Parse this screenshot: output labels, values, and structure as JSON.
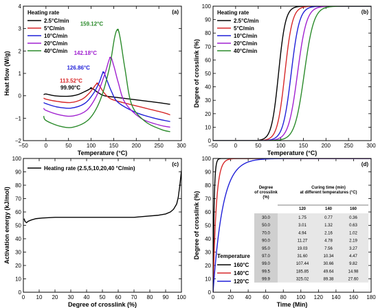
{
  "chart_data": [
    {
      "panel": "(a)",
      "type": "line",
      "xlabel": "Temperature (°C)",
      "ylabel": "Heat flow (W/g)",
      "xlim": [
        -50,
        300
      ],
      "ylim": [
        -2,
        4
      ],
      "xticks": [
        "−50",
        "0",
        "50",
        "100",
        "150",
        "200",
        "250",
        "300"
      ],
      "yticks": [
        "−2",
        "−1",
        "0",
        "1",
        "2",
        "3",
        "4"
      ],
      "legend_title": "Heating rate",
      "legend_position": "top-left",
      "series": [
        {
          "name": "2.5°C/min",
          "color": "#000000",
          "x": [
            -5,
            0,
            20,
            50,
            70,
            85,
            95,
            99.9,
            105,
            115,
            130,
            160,
            200,
            240,
            275
          ],
          "y": [
            0.05,
            0.08,
            0.0,
            -0.02,
            0.05,
            0.18,
            0.28,
            0.34,
            0.3,
            0.15,
            0.0,
            -0.08,
            -0.18,
            -0.28,
            -0.38
          ]
        },
        {
          "name": "5°C/min",
          "color": "#d62728",
          "x": [
            -5,
            0,
            25,
            55,
            80,
            95,
            105,
            113.5,
            120,
            130,
            145,
            180,
            220,
            260,
            275
          ],
          "y": [
            -0.1,
            -0.15,
            -0.25,
            -0.3,
            -0.15,
            0.1,
            0.35,
            0.55,
            0.4,
            0.1,
            -0.15,
            -0.35,
            -0.55,
            -0.75,
            -0.85
          ]
        },
        {
          "name": "10°C/min",
          "color": "#1f1fd8",
          "x": [
            -5,
            0,
            25,
            55,
            85,
            105,
            118,
            126.9,
            133,
            145,
            160,
            200,
            240,
            275
          ],
          "y": [
            -0.3,
            -0.35,
            -0.5,
            -0.55,
            -0.35,
            0.1,
            0.6,
            1.05,
            0.8,
            0.2,
            -0.3,
            -0.75,
            -1.0,
            -1.15
          ]
        },
        {
          "name": "20°C/min",
          "color": "#a020d0",
          "x": [
            -5,
            0,
            30,
            60,
            90,
            112,
            130,
            142.2,
            150,
            160,
            175,
            210,
            250,
            275
          ],
          "y": [
            -0.55,
            -0.65,
            -0.85,
            -0.9,
            -0.65,
            0.0,
            0.95,
            1.7,
            1.35,
            0.6,
            -0.3,
            -1.0,
            -1.3,
            -1.4
          ]
        },
        {
          "name": "40°C/min",
          "color": "#2a8a2a",
          "x": [
            -5,
            0,
            30,
            60,
            95,
            120,
            140,
            152,
            159.1,
            165,
            175,
            190,
            220,
            255,
            275
          ],
          "y": [
            -0.9,
            -1.1,
            -1.35,
            -1.4,
            -1.05,
            -0.2,
            1.2,
            2.6,
            2.95,
            2.5,
            1.2,
            -0.4,
            -1.15,
            -1.5,
            -1.6
          ]
        }
      ],
      "annotations": [
        {
          "text": "159.12°C",
          "color": "#2a8a2a",
          "x": 159.12,
          "y": 2.95
        },
        {
          "text": "142.18°C",
          "color": "#a020d0",
          "x": 142.18,
          "y": 1.7
        },
        {
          "text": "126.86°C",
          "color": "#1f1fd8",
          "x": 126.86,
          "y": 1.05
        },
        {
          "text": "113.52°C",
          "color": "#d62728",
          "x": 113.52,
          "y": 0.55
        },
        {
          "text": "99.90°C",
          "color": "#000000",
          "x": 99.9,
          "y": 0.34
        }
      ]
    },
    {
      "panel": "(b)",
      "type": "line",
      "xlabel": "Temperature (°C)",
      "ylabel": "Degree of crosslink (%)",
      "xlim": [
        -50,
        300
      ],
      "ylim": [
        0,
        100
      ],
      "xticks": [
        "−50",
        "0",
        "50",
        "100",
        "150",
        "200",
        "250",
        "300"
      ],
      "yticks": [
        "0",
        "10",
        "20",
        "30",
        "40",
        "50",
        "60",
        "70",
        "80",
        "90",
        "100"
      ],
      "legend_title": "Heating rate",
      "legend_position": "top-left",
      "series": [
        {
          "name": "2.5°C/min",
          "color": "#000000",
          "mid": 95,
          "k": 0.13
        },
        {
          "name": "5°C/min",
          "color": "#d62728",
          "mid": 109,
          "k": 0.12
        },
        {
          "name": "10°C/min",
          "color": "#1f1fd8",
          "mid": 123,
          "k": 0.11
        },
        {
          "name": "20°C/min",
          "color": "#a020d0",
          "mid": 137,
          "k": 0.1
        },
        {
          "name": "40°C/min",
          "color": "#2a8a2a",
          "mid": 152,
          "k": 0.095
        }
      ]
    },
    {
      "panel": "(c)",
      "type": "line",
      "xlabel": "Degree of crosslink (%)",
      "ylabel": "Activation energy (kJ/mol)",
      "xlim": [
        0,
        100
      ],
      "ylim": [
        0,
        100
      ],
      "xticks": [
        "0",
        "10",
        "20",
        "30",
        "40",
        "50",
        "60",
        "70",
        "80",
        "90",
        "100"
      ],
      "yticks": [
        "0",
        "10",
        "20",
        "30",
        "40",
        "50",
        "60",
        "70",
        "80",
        "90",
        "100"
      ],
      "legend_position": "top-left",
      "series": [
        {
          "name": "Heating rate (2.5,5,10,20,40 °C/min)",
          "color": "#000000",
          "x": [
            0.5,
            1,
            2,
            3,
            5,
            8,
            12,
            20,
            30,
            40,
            50,
            60,
            70,
            80,
            85,
            90,
            93,
            95,
            97,
            98,
            99,
            100
          ],
          "y": [
            55,
            53,
            52,
            53,
            54,
            55,
            55.5,
            56,
            56,
            56,
            56,
            56,
            56,
            57,
            57.5,
            58.5,
            60,
            62,
            66,
            71,
            80,
            91
          ]
        }
      ]
    },
    {
      "panel": "(d)",
      "type": "line",
      "xlabel": "Time (Min)",
      "ylabel": "Degree of crosslink (%)",
      "xlim": [
        0,
        180
      ],
      "ylim": [
        0,
        100
      ],
      "xticks": [
        "0",
        "20",
        "40",
        "60",
        "80",
        "100",
        "120",
        "140",
        "160",
        "180"
      ],
      "yticks": [
        "0",
        "10",
        "20",
        "30",
        "40",
        "50",
        "60",
        "70",
        "80",
        "90",
        "100"
      ],
      "legend_title": "Temperature",
      "legend_position": "bottom-left",
      "series": [
        {
          "name": "160°C",
          "color": "#000000",
          "tau": 1.2
        },
        {
          "name": "140°C",
          "color": "#d62728",
          "tau": 3.6
        },
        {
          "name": "120°C",
          "color": "#1f1fd8",
          "tau": 11.0
        }
      ],
      "table": {
        "col0_header": [
          "Degree",
          "of crosslink",
          "(%)"
        ],
        "group_header": [
          "Curing time (min)",
          "at different temperatures (°C)"
        ],
        "temps": [
          "120",
          "140",
          "160"
        ],
        "rows": [
          [
            "30.0",
            "1.75",
            "0.77",
            "0.36"
          ],
          [
            "50.0",
            "3.01",
            "1.32",
            "0.63"
          ],
          [
            "70.0",
            "4.94",
            "2.16",
            "1.02"
          ],
          [
            "90.0",
            "11.27",
            "4.78",
            "2.19"
          ],
          [
            "95.0",
            "19.03",
            "7.56",
            "3.27"
          ],
          [
            "97.0",
            "31.60",
            "10.34",
            "4.47"
          ],
          [
            "99.0",
            "107.44",
            "30.66",
            "9.82"
          ],
          [
            "99.5",
            "185.85",
            "49.64",
            "14.98"
          ],
          [
            "99.9",
            "325.02",
            "89.38",
            "27.60"
          ]
        ]
      }
    }
  ]
}
